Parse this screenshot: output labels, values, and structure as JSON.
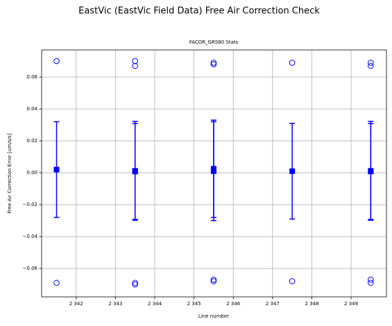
{
  "chart_data": {
    "type": "errorbar",
    "title": "EastVic (EastVic Field Data) Free Air Correction Check",
    "subtitle": "FACOR_GRS80 Stats",
    "x_label": "Line number",
    "y_label": "Free Air Correction Error [um/s/s]",
    "color": "#0000ff",
    "grid": true,
    "xlim": [
      2341.12,
      2349.9
    ],
    "ylim": [
      -0.0778,
      0.077
    ],
    "xticks": [
      {
        "value": 2342,
        "label": "2 342"
      },
      {
        "value": 2343,
        "label": "2 343"
      },
      {
        "value": 2344,
        "label": "2 344"
      },
      {
        "value": 2345,
        "label": "2 345"
      },
      {
        "value": 2346,
        "label": "2 346"
      },
      {
        "value": 2347,
        "label": "2 347"
      },
      {
        "value": 2348,
        "label": "2 348"
      },
      {
        "value": 2349,
        "label": "2 349"
      }
    ],
    "yticks": [
      {
        "value": -0.06,
        "label": "−0.06"
      },
      {
        "value": -0.04,
        "label": "−0.04"
      },
      {
        "value": -0.02,
        "label": "−0.02"
      },
      {
        "value": 0,
        "label": "0.00"
      },
      0.02,
      0.04,
      0.06
    ],
    "points": {
      "x": [
        2341.5,
        2343.5,
        2343.5,
        2345.5,
        2345.5,
        2347.5,
        2349.5,
        2349.5
      ],
      "values": [
        0.002,
        0.0012,
        0.0008,
        0.0025,
        0.001,
        0.001,
        0.0012,
        0.0008
      ],
      "errors": [
        0.03,
        0.031,
        0.03,
        0.0305,
        0.031,
        0.03,
        0.031,
        0.03
      ]
    },
    "outliers": {
      "x": [
        2341.5,
        2341.5,
        2343.5,
        2343.5,
        2343.5,
        2343.5,
        2345.5,
        2345.5,
        2345.5,
        2345.5,
        2347.5,
        2347.5,
        2349.5,
        2349.5,
        2349.5,
        2349.5
      ],
      "values": [
        0.07,
        -0.069,
        0.07,
        0.067,
        -0.069,
        -0.07,
        0.069,
        0.068,
        -0.067,
        -0.068,
        0.069,
        -0.068,
        0.069,
        0.067,
        -0.067,
        -0.069
      ]
    }
  }
}
